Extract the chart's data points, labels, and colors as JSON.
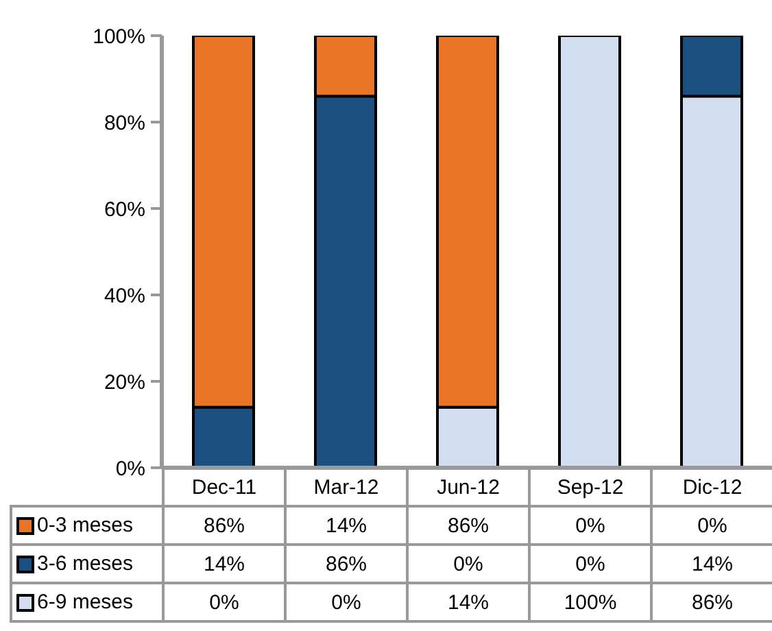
{
  "chart_data": {
    "type": "bar",
    "stacked": true,
    "categories": [
      "Dec-11",
      "Mar-12",
      "Jun-12",
      "Sep-12",
      "Dic-12"
    ],
    "series": [
      {
        "name": "6-9 meses",
        "color": "#d3dff0",
        "values": [
          0,
          0,
          14,
          100,
          86
        ],
        "value_labels": [
          "0%",
          "0%",
          "14%",
          "100%",
          "86%"
        ]
      },
      {
        "name": "3-6 meses",
        "color": "#1b4f80",
        "values": [
          14,
          86,
          0,
          0,
          14
        ],
        "value_labels": [
          "14%",
          "86%",
          "0%",
          "0%",
          "14%"
        ]
      },
      {
        "name": "0-3 meses",
        "color": "#e87425",
        "values": [
          86,
          14,
          86,
          0,
          0
        ],
        "value_labels": [
          "86%",
          "14%",
          "86%",
          "0%",
          "0%"
        ]
      }
    ],
    "ylim": [
      0,
      100
    ],
    "yticks": [
      {
        "value": 0,
        "label": "0%"
      },
      {
        "value": 20,
        "label": "20%"
      },
      {
        "value": 40,
        "label": "40%"
      },
      {
        "value": 60,
        "label": "60%"
      },
      {
        "value": 80,
        "label": "80%"
      },
      {
        "value": 100,
        "label": "100%"
      }
    ],
    "legend": "bottom"
  }
}
